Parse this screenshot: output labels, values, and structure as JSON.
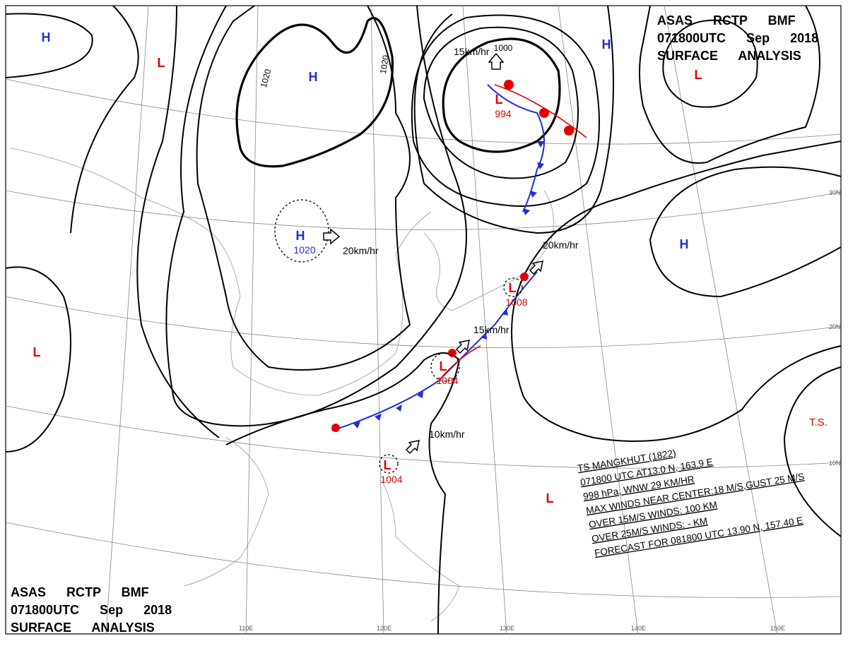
{
  "header_top": {
    "lines": [
      "ASAS RCTP BMF",
      "071800UTC Sep 2018",
      "SURFACE ANALYSIS"
    ]
  },
  "header_bottom": {
    "lines": [
      "ASAS RCTP BMF",
      "071800UTC Sep 2018",
      "SURFACE ANALYSIS"
    ]
  },
  "pressure_centers": [
    {
      "symbol": "H"
    },
    {
      "symbol": "L"
    },
    {
      "symbol": "H"
    },
    {
      "symbol": "H",
      "pressure": "1020"
    },
    {
      "symbol": "L",
      "pressure": "994"
    },
    {
      "symbol": "H"
    },
    {
      "symbol": "L"
    },
    {
      "symbol": "H"
    },
    {
      "symbol": "L",
      "pressure": "1008"
    },
    {
      "symbol": "L",
      "pressure": "1004"
    },
    {
      "symbol": "L",
      "pressure": "1004"
    },
    {
      "symbol": "L"
    },
    {
      "symbol": "L"
    }
  ],
  "isobar_labels": [
    "1020",
    "1020",
    "1000"
  ],
  "motion_labels": [
    "15km/hr",
    "20km/hr",
    "20km/hr",
    "15km/hr",
    "10km/hr"
  ],
  "lat_labels": [
    "30N",
    "20N",
    "10N"
  ],
  "lon_labels": [
    "110E",
    "120E",
    "130E",
    "140E",
    "150E"
  ],
  "typhoon": {
    "symbol": "T.S.",
    "bulletin": [
      "TS MANGKHUT (1822)",
      "071800 UTC AT13.0 N, 163.9 E",
      "998 hPa, WNW 29 KM/HR",
      "MAX WINDS NEAR CENTER:18 M/S,GUST 25 M/S",
      "OVER 15M/S WINDS: 100 KM",
      "OVER 25M/S WINDS: - KM",
      "FORECAST FOR 081800 UTC 13.90 N, 157.40 E"
    ]
  }
}
